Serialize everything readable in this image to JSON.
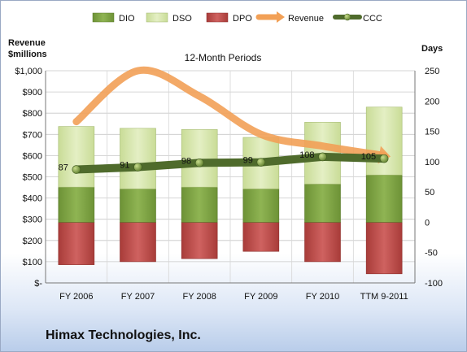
{
  "company": "Himax Technologies, Inc.",
  "chart_data": {
    "type": "bar",
    "title": "12-Month Periods",
    "ylabel_left": [
      "Revenue",
      "$millions"
    ],
    "ylabel_right": "Days",
    "categories": [
      "FY 2006",
      "FY 2007",
      "FY 2008",
      "FY 2009",
      "FY 2010",
      "TTM 9-2011"
    ],
    "left_axis": {
      "range": [
        0,
        1000
      ],
      "ticks": [
        0,
        100,
        200,
        300,
        400,
        500,
        600,
        700,
        800,
        900,
        1000
      ],
      "tick_labels": [
        "$-",
        "$100",
        "$200",
        "$300",
        "$400",
        "$500",
        "$600",
        "$700",
        "$800",
        "$900",
        "$1,000"
      ]
    },
    "right_axis": {
      "range": [
        -100,
        250
      ],
      "ticks": [
        -100,
        -50,
        0,
        50,
        100,
        150,
        200,
        250
      ],
      "tick_labels": [
        "-100",
        "-50",
        "0",
        "50",
        "100",
        "150",
        "200",
        "250"
      ]
    },
    "grid": true,
    "legend": {
      "position": "top",
      "entries": [
        "DIO",
        "DSO",
        "DPO",
        "Revenue",
        "CCC"
      ]
    },
    "series": [
      {
        "name": "DIO",
        "type": "stacked-bar",
        "axis": "right",
        "color": "#7fa642",
        "values": [
          58,
          55,
          58,
          55,
          63,
          78
        ]
      },
      {
        "name": "DSO",
        "type": "stacked-bar",
        "axis": "right",
        "color": "#d7e6ae",
        "values": [
          100,
          100,
          95,
          85,
          102,
          112
        ]
      },
      {
        "name": "DPO",
        "type": "negative-bar",
        "axis": "right",
        "color": "#c0504d",
        "values": [
          -70,
          -65,
          -60,
          -48,
          -65,
          -85
        ]
      },
      {
        "name": "Revenue",
        "type": "line",
        "axis": "left",
        "color": "#f2a056",
        "values": [
          760,
          1000,
          880,
          700,
          645,
          600
        ]
      },
      {
        "name": "CCC",
        "type": "line",
        "axis": "right",
        "color": "#4f6b2c",
        "values": [
          87,
          91,
          98,
          99,
          108,
          105
        ],
        "labels": [
          "87",
          "91",
          "98",
          "99",
          "108",
          "105"
        ]
      }
    ]
  }
}
